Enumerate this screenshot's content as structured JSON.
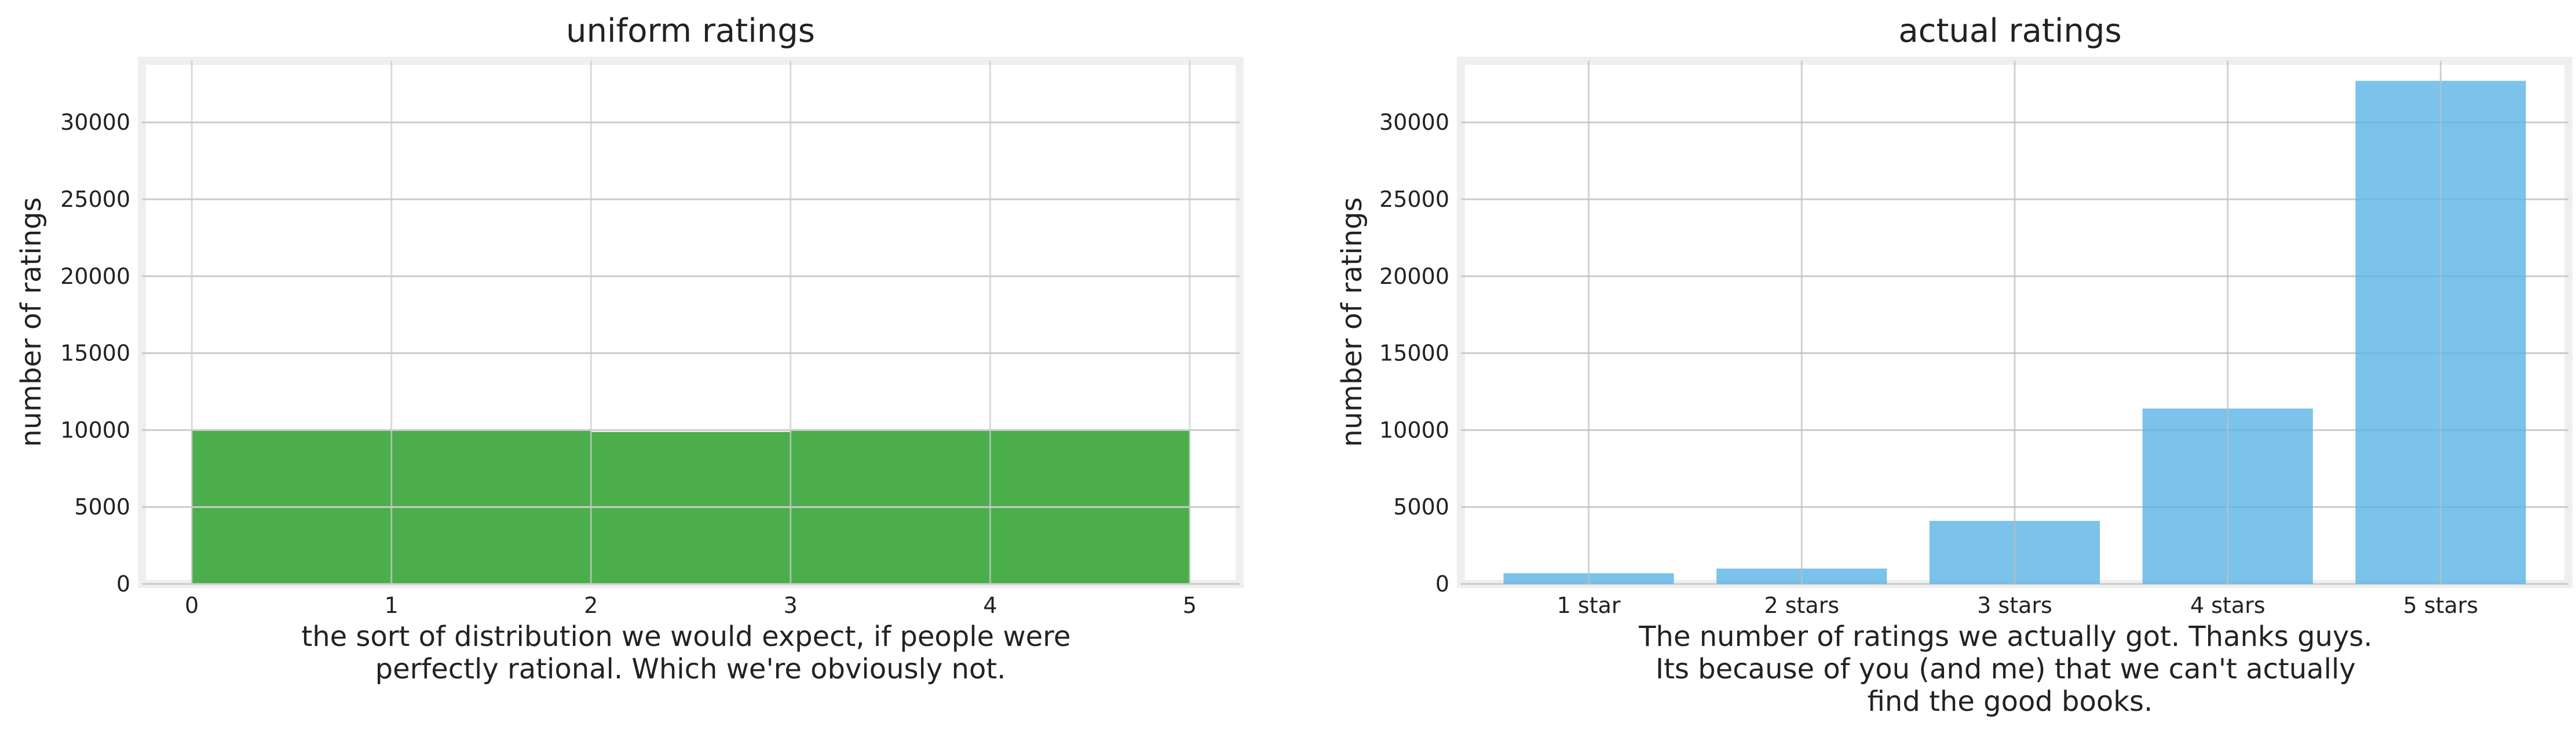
{
  "chart_data": [
    {
      "type": "histogram",
      "title": "uniform ratings",
      "xlabel": [
        "the sort of distribution we would expect, if people were",
        "perfectly rational. Which we're obviously not."
      ],
      "ylabel": "number of ratings",
      "bin_edges": [
        0,
        1,
        2,
        3,
        4,
        5
      ],
      "values": [
        10050,
        10020,
        9880,
        10020,
        9960
      ],
      "x_ticks": [
        "0",
        "1",
        "2",
        "3",
        "4",
        "5"
      ],
      "xlim": [
        -0.25,
        5.25
      ],
      "ylim": [
        0,
        34000
      ],
      "y_ticks": [
        "0",
        "5000",
        "10000",
        "15000",
        "20000",
        "25000",
        "30000"
      ],
      "y_tick_values": [
        0,
        5000,
        10000,
        15000,
        20000,
        25000,
        30000
      ],
      "color": "#2ca02c",
      "grid": true
    },
    {
      "type": "bar",
      "title": "actual ratings",
      "xlabel": [
        "The number of ratings we actually got. Thanks guys.",
        "Its because of you (and me) that we can't actually",
        "find the good books."
      ],
      "ylabel": "number of ratings",
      "categories": [
        "1 star",
        "2 stars",
        "3 stars",
        "4 stars",
        "5 stars"
      ],
      "values": [
        700,
        1000,
        4100,
        11400,
        32700
      ],
      "ylim": [
        0,
        34000
      ],
      "y_ticks": [
        "0",
        "5000",
        "10000",
        "15000",
        "20000",
        "25000",
        "30000"
      ],
      "y_tick_values": [
        0,
        5000,
        10000,
        15000,
        20000,
        25000,
        30000
      ],
      "color": "#5ab4e5",
      "grid": true
    }
  ]
}
